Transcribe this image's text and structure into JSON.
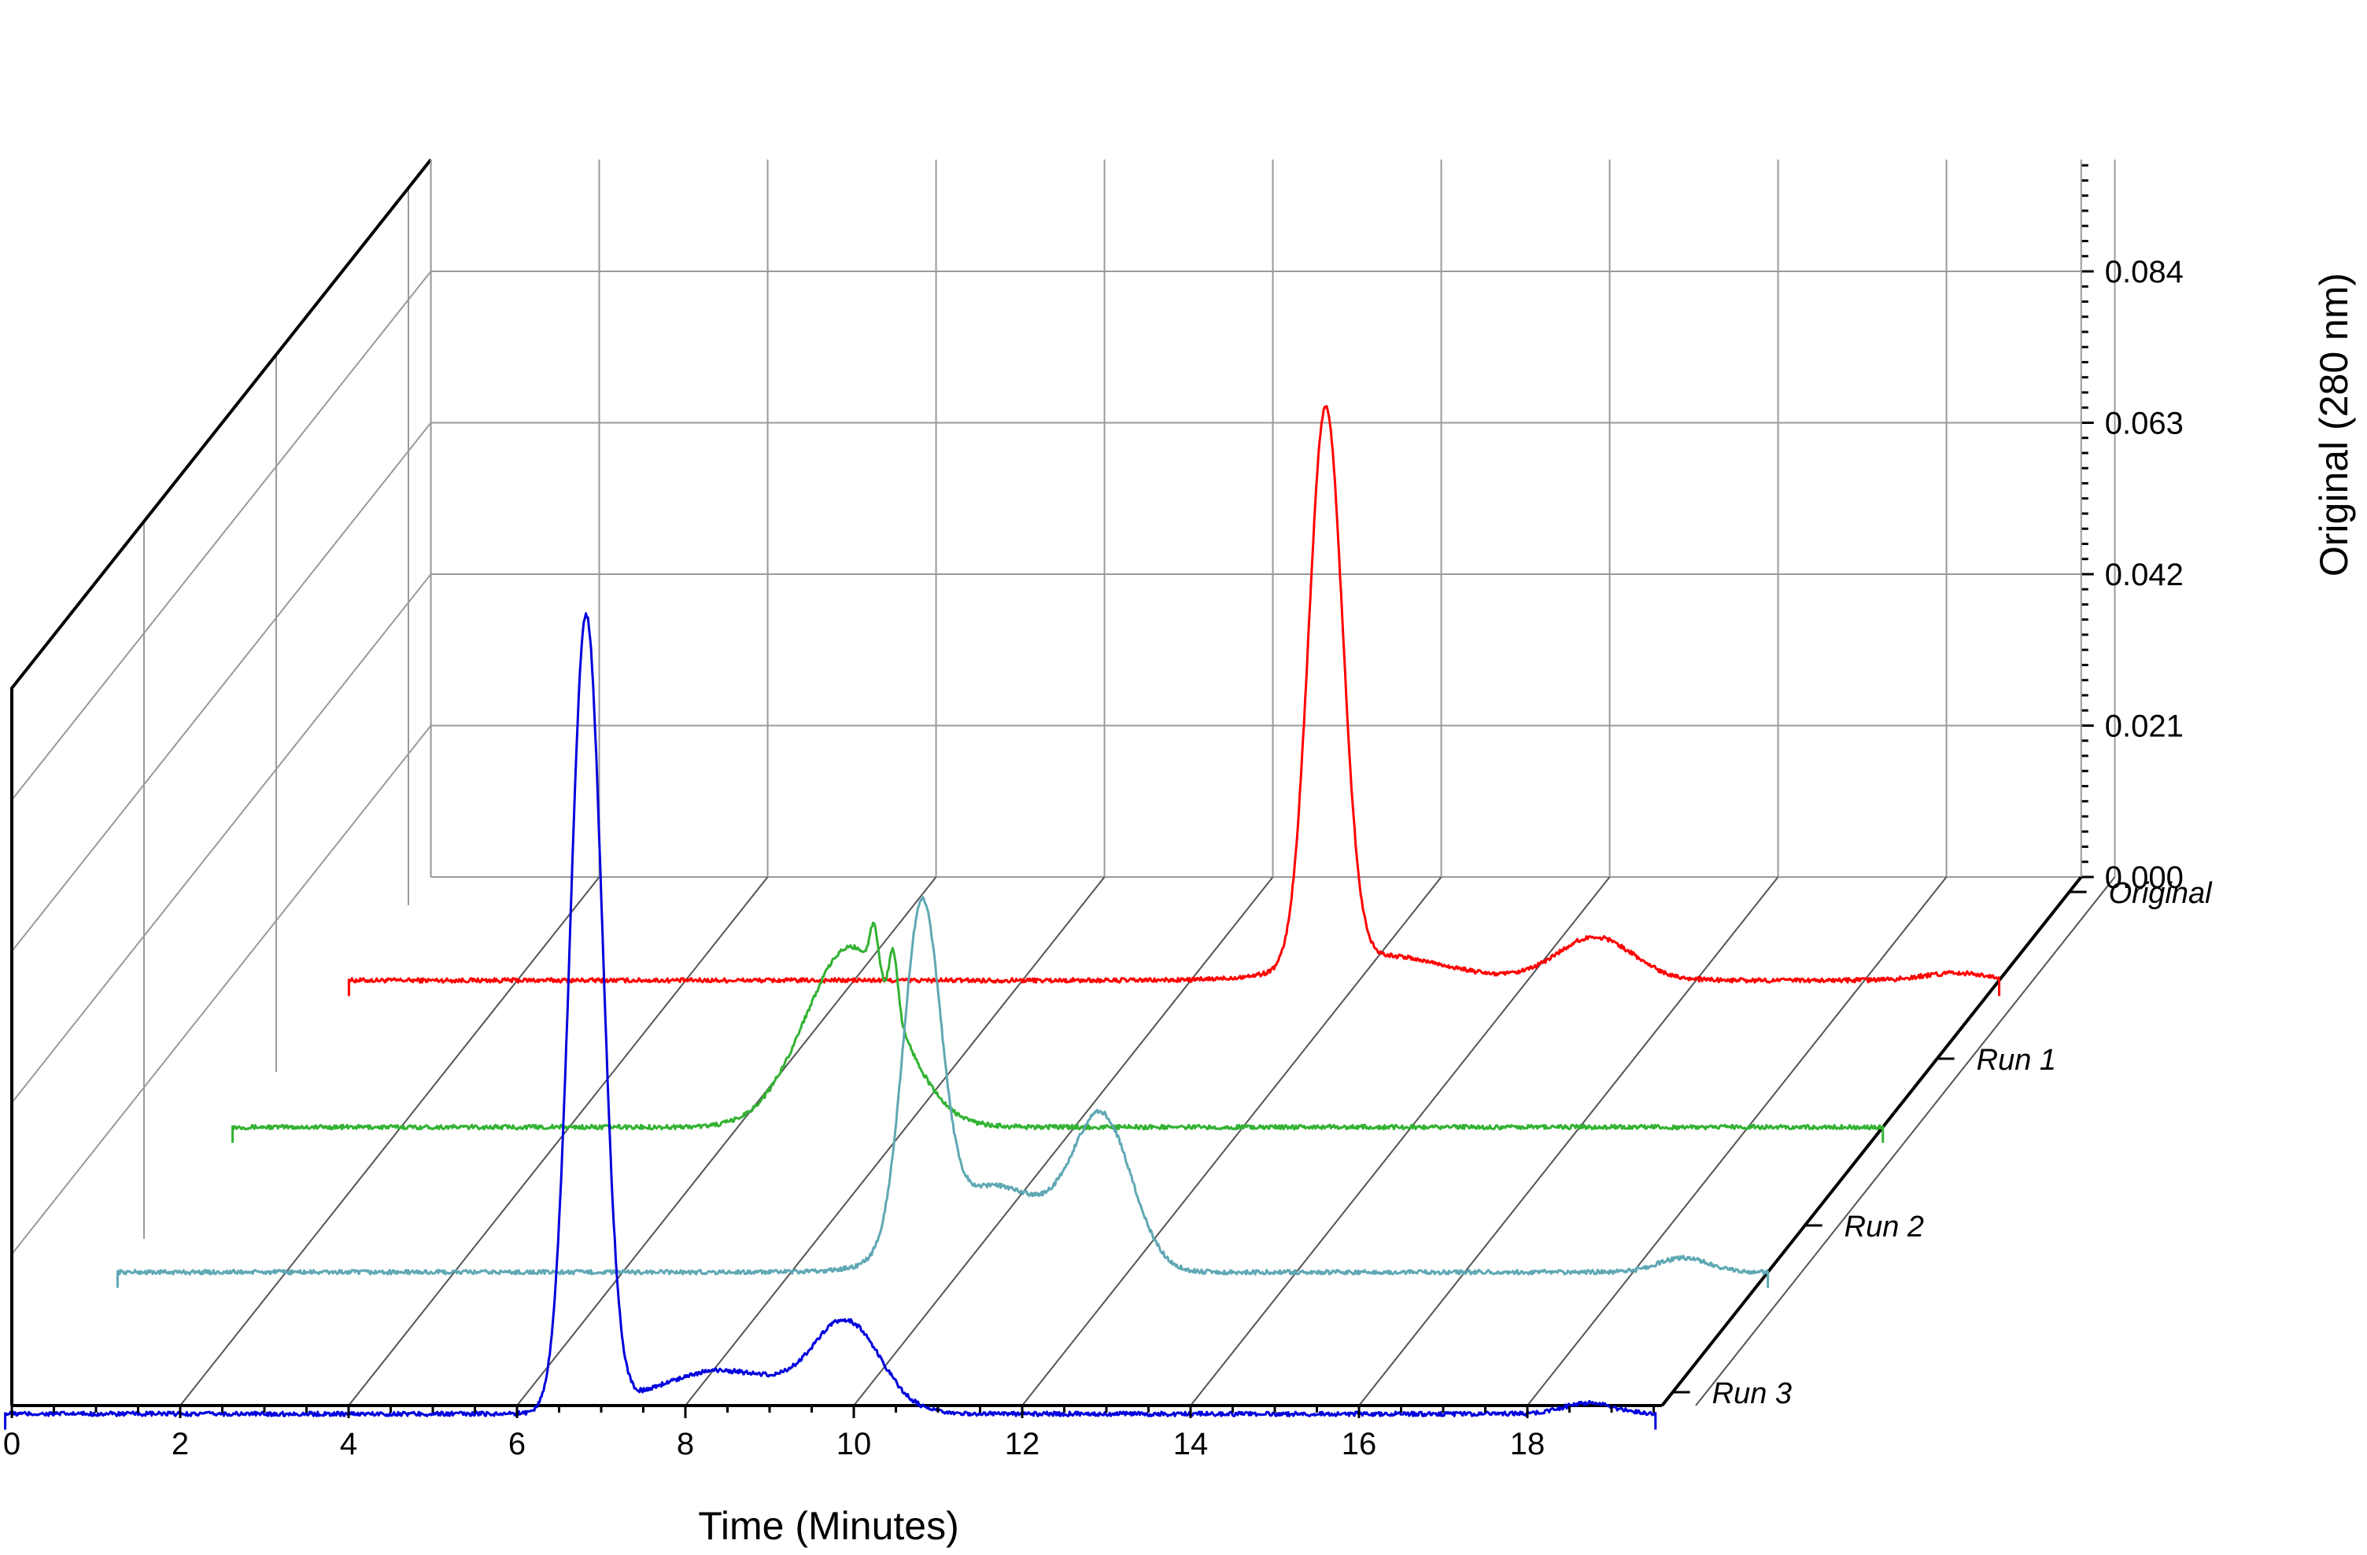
{
  "chart_data": {
    "type": "line",
    "style": "3d-waterfall",
    "xlabel": "Time (Minutes)",
    "zlabel": "Original (280 nm)",
    "x_ticks": [
      "0",
      "2",
      "4",
      "6",
      "8",
      "10",
      "12",
      "14",
      "16",
      "18"
    ],
    "z_ticks": [
      "0.000",
      "0.021",
      "0.042",
      "0.063",
      "0.084"
    ],
    "xlim": [
      0,
      19.6
    ],
    "zlim": [
      0,
      0.1
    ],
    "grid": true,
    "series": [
      {
        "name": "Original",
        "color": "#ff0000",
        "x_start": 0,
        "x_end": 19.6,
        "baseline": 0.0,
        "peaks": [
          {
            "center": 11.6,
            "height": 0.077,
            "width": 0.2
          },
          {
            "center": 12.2,
            "height": 0.0035,
            "width": 0.8
          },
          {
            "center": 14.8,
            "height": 0.006,
            "width": 0.45
          },
          {
            "center": 19.1,
            "height": 0.001,
            "width": 0.4
          }
        ]
      },
      {
        "name": "Run 1",
        "color": "#33b233",
        "x_start": 0,
        "x_end": 19.6,
        "baseline": 0.0,
        "peaks": [
          {
            "center": 7.35,
            "height": 0.025,
            "width": 0.55
          },
          {
            "center": 7.62,
            "height": 0.006,
            "width": 0.05
          },
          {
            "center": 7.85,
            "height": 0.008,
            "width": 0.05
          }
        ]
      },
      {
        "name": "Run 2",
        "color": "#5fa8b4",
        "x_start": 0,
        "x_end": 19.6,
        "baseline": 0.0,
        "peaks": [
          {
            "center": 9.55,
            "height": 0.046,
            "width": 0.22
          },
          {
            "center": 10.4,
            "height": 0.012,
            "width": 0.7
          },
          {
            "center": 11.7,
            "height": 0.02,
            "width": 0.35
          },
          {
            "center": 18.6,
            "height": 0.002,
            "width": 0.3
          }
        ]
      },
      {
        "name": "Run 3",
        "color": "#0000dd",
        "x_start": 0,
        "x_end": 19.6,
        "baseline": 0.0,
        "peaks": [
          {
            "center": 6.9,
            "height": 0.11,
            "width": 0.19
          },
          {
            "center": 8.5,
            "height": 0.006,
            "width": 0.8
          },
          {
            "center": 10.0,
            "height": 0.012,
            "width": 0.4
          },
          {
            "center": 18.8,
            "height": 0.0015,
            "width": 0.3
          }
        ]
      }
    ]
  }
}
